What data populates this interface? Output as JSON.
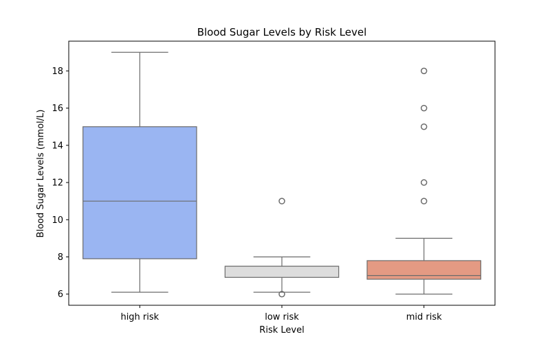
{
  "chart_data": {
    "type": "box",
    "title": "Blood Sugar Levels by Risk Level",
    "xlabel": "Risk Level",
    "ylabel": "Blood Sugar Levels (mmol/L)",
    "ylim": [
      5.4,
      19.6
    ],
    "yticks": [
      6,
      8,
      10,
      12,
      14,
      16,
      18
    ],
    "grid": false,
    "categories": [
      "high risk",
      "low risk",
      "mid risk"
    ],
    "boxes": [
      {
        "category": "high risk",
        "whisker_low": 6.1,
        "q1": 7.9,
        "median": 11,
        "q3": 15,
        "whisker_high": 19,
        "outliers": [],
        "color": "#9ab5f2"
      },
      {
        "category": "low risk",
        "whisker_low": 6.1,
        "q1": 6.9,
        "median": 7.5,
        "q3": 7.5,
        "whisker_high": 8,
        "outliers": [
          6,
          11
        ],
        "color": "#dddddd"
      },
      {
        "category": "mid risk",
        "whisker_low": 6,
        "q1": 6.8,
        "median": 7,
        "q3": 7.8,
        "whisker_high": 9,
        "outliers": [
          11,
          12,
          15,
          16,
          18
        ],
        "color": "#e49a83"
      }
    ],
    "line_color": "#6b6b6b"
  }
}
